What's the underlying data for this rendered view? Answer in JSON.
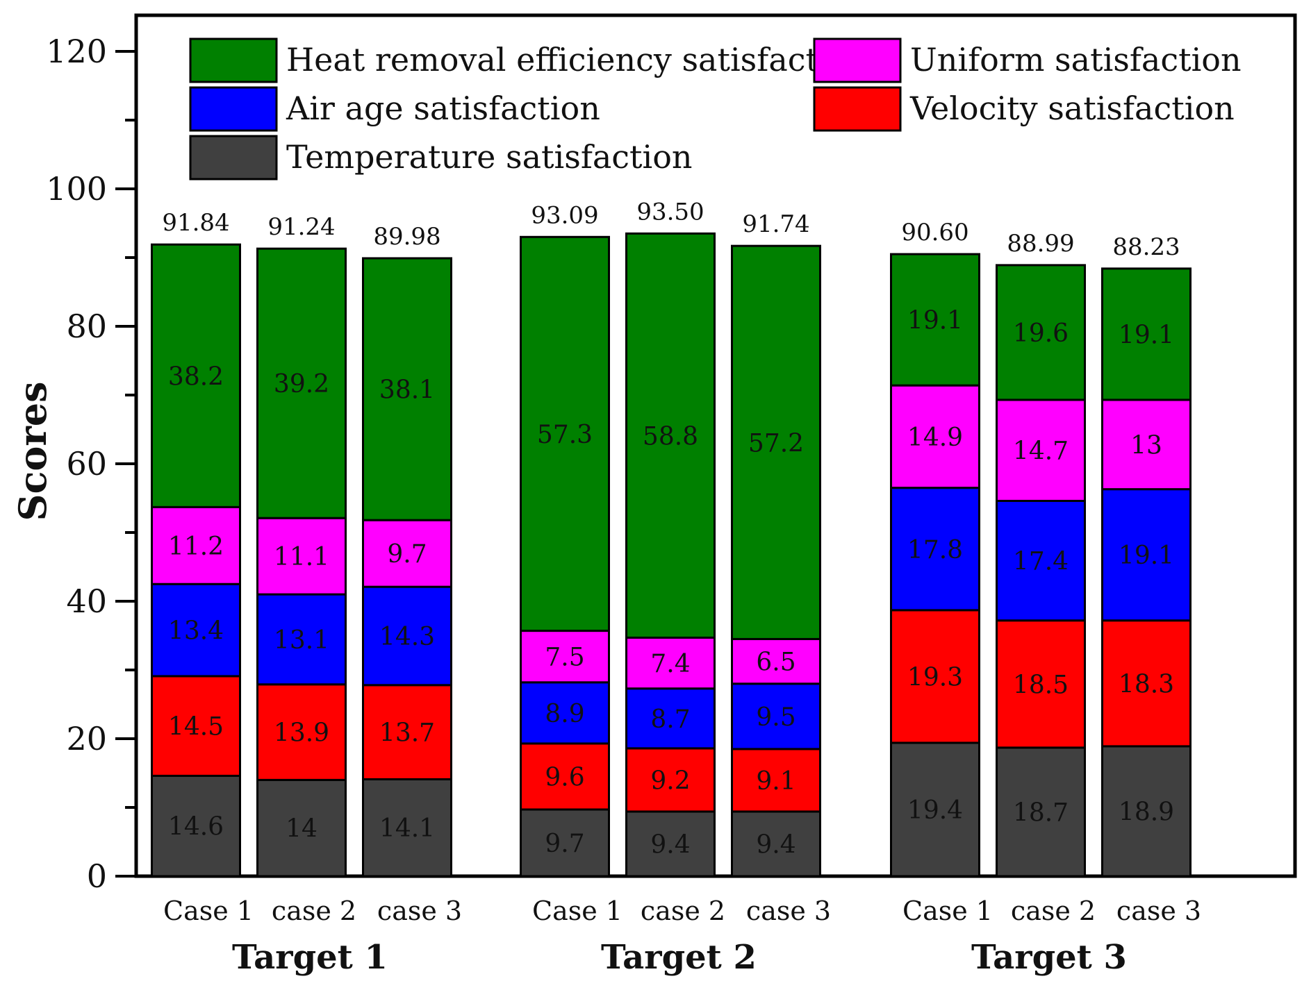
{
  "chart_data": {
    "type": "bar",
    "stacked": true,
    "ylabel": "Scores",
    "ylim": [
      0,
      120
    ],
    "yticks": [
      0,
      20,
      40,
      60,
      80,
      100,
      120
    ],
    "legend_position": "top",
    "groups": [
      {
        "label": "Target 1",
        "cases": [
          "Case 1",
          "case 2",
          "case 3"
        ],
        "totals": [
          "91.84",
          "91.24",
          "89.98"
        ]
      },
      {
        "label": "Target 2",
        "cases": [
          "Case 1",
          "case 2",
          "case 3"
        ],
        "totals": [
          "93.09",
          "93.50",
          "91.74"
        ]
      },
      {
        "label": "Target 3",
        "cases": [
          "Case 1",
          "case 2",
          "case 3"
        ],
        "totals": [
          "90.60",
          "88.99",
          "88.23"
        ]
      }
    ],
    "series": [
      {
        "name": "Temperature satisfaction",
        "color": "#404040",
        "values": [
          14.6,
          14,
          14.1,
          9.7,
          9.4,
          9.4,
          19.4,
          18.7,
          18.9
        ],
        "labels": [
          "14.6",
          "14",
          "14.1",
          "9.7",
          "9.4",
          "9.4",
          "19.4",
          "18.7",
          "18.9"
        ]
      },
      {
        "name": "Velocity satisfaction",
        "color": "#ff0000",
        "values": [
          14.5,
          13.9,
          13.7,
          9.6,
          9.2,
          9.1,
          19.3,
          18.5,
          18.3
        ],
        "labels": [
          "14.5",
          "13.9",
          "13.7",
          "9.6",
          "9.2",
          "9.1",
          "19.3",
          "18.5",
          "18.3"
        ]
      },
      {
        "name": "Air age satisfaction",
        "color": "#0000ff",
        "values": [
          13.4,
          13.1,
          14.3,
          8.9,
          8.7,
          9.5,
          17.8,
          17.4,
          19.1
        ],
        "labels": [
          "13.4",
          "13.1",
          "14.3",
          "8.9",
          "8.7",
          "9.5",
          "17.8",
          "17.4",
          "19.1"
        ]
      },
      {
        "name": "Uniform satisfaction",
        "color": "#ff00ff",
        "values": [
          11.2,
          11.1,
          9.7,
          7.5,
          7.4,
          6.5,
          14.9,
          14.7,
          13
        ],
        "labels": [
          "11.2",
          "11.1",
          "9.7",
          "7.5",
          "7.4",
          "6.5",
          "14.9",
          "14.7",
          "13"
        ]
      },
      {
        "name": "Heat removal efficiency satisfaction",
        "color": "#008000",
        "values": [
          38.2,
          39.2,
          38.1,
          57.3,
          58.8,
          57.2,
          19.1,
          19.6,
          19.1
        ],
        "labels": [
          "38.2",
          "39.2",
          "38.1",
          "57.3",
          "58.8",
          "57.2",
          "19.1",
          "19.6",
          "19.1"
        ]
      }
    ]
  }
}
